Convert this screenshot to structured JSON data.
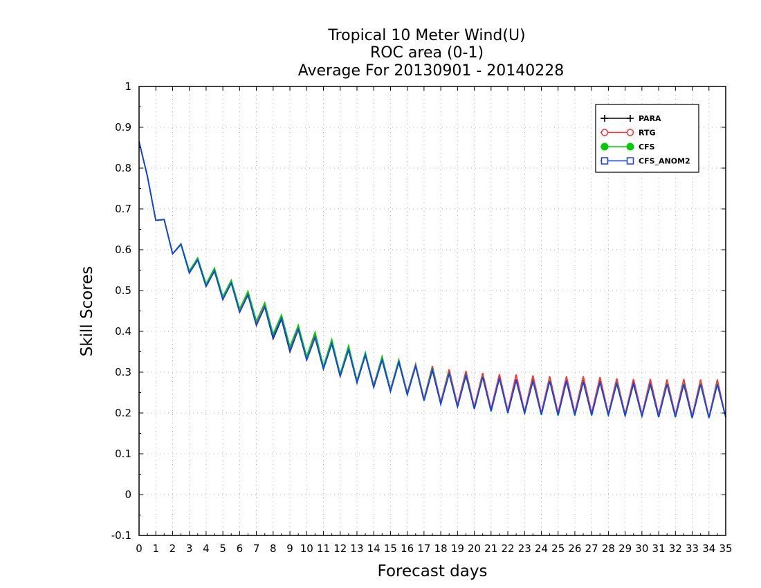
{
  "chart_data": {
    "type": "line",
    "title_lines": [
      "Tropical 10 Meter Wind(U)",
      "ROC area (0-1)",
      "Average For 20130901 - 20140228"
    ],
    "xlabel": "Forecast days",
    "ylabel": "Skill Scores",
    "xlim": [
      0,
      35
    ],
    "ylim": [
      -0.1,
      1
    ],
    "xticks": [
      0,
      1,
      2,
      3,
      4,
      5,
      6,
      7,
      8,
      9,
      10,
      11,
      12,
      13,
      14,
      15,
      16,
      17,
      18,
      19,
      20,
      21,
      22,
      23,
      24,
      25,
      26,
      27,
      28,
      29,
      30,
      31,
      32,
      33,
      34,
      35
    ],
    "yticks": [
      -0.1,
      0,
      0.1,
      0.2,
      0.3,
      0.4,
      0.5,
      0.6,
      0.7,
      0.8,
      0.9,
      1
    ],
    "ytick_labels": [
      "-0.1",
      "0",
      "0.1",
      "0.2",
      "0.3",
      "0.4",
      "0.5",
      "0.6",
      "0.7",
      "0.8",
      "0.9",
      "1"
    ],
    "grid": true,
    "legend_position": "top-right",
    "x": [
      0,
      0.5,
      1,
      1.5,
      2,
      2.5,
      3,
      3.5,
      4,
      4.5,
      5,
      5.5,
      6,
      6.5,
      7,
      7.5,
      8,
      8.5,
      9,
      9.5,
      10,
      10.5,
      11,
      11.5,
      12,
      12.5,
      13,
      13.5,
      14,
      14.5,
      15,
      15.5,
      16,
      16.5,
      17,
      17.5,
      18,
      18.5,
      19,
      19.5,
      20,
      20.5,
      21,
      21.5,
      22,
      22.5,
      23,
      23.5,
      24,
      24.5,
      25,
      25.5,
      26,
      26.5,
      27,
      27.5,
      28,
      28.5,
      29,
      29.5,
      30,
      30.5,
      31,
      31.5,
      32,
      32.5,
      33,
      33.5,
      34,
      34.5,
      35
    ],
    "series": [
      {
        "name": "PARA",
        "color": "#000000",
        "marker": "plus",
        "values": [
          0.865,
          0.78,
          0.672,
          0.674,
          0.59,
          0.613,
          0.543,
          0.575,
          0.51,
          0.548,
          0.478,
          0.52,
          0.447,
          0.49,
          0.415,
          0.46,
          0.382,
          0.43,
          0.35,
          0.405,
          0.33,
          0.385,
          0.308,
          0.37,
          0.29,
          0.355,
          0.274,
          0.342,
          0.263,
          0.33,
          0.253,
          0.325,
          0.245,
          0.315,
          0.23,
          0.305,
          0.222,
          0.298,
          0.215,
          0.292,
          0.21,
          0.29,
          0.205,
          0.288,
          0.2,
          0.282,
          0.2,
          0.282,
          0.196,
          0.28,
          0.195,
          0.28,
          0.195,
          0.28,
          0.195,
          0.278,
          0.195,
          0.275,
          0.193,
          0.272,
          0.192,
          0.272,
          0.19,
          0.272,
          0.19,
          0.272,
          0.188,
          0.272,
          0.188,
          0.272,
          0.19
        ]
      },
      {
        "name": "RTG",
        "color": "#ff3030",
        "marker": "circle-open",
        "values": [
          0.865,
          0.78,
          0.672,
          0.674,
          0.59,
          0.615,
          0.546,
          0.578,
          0.513,
          0.552,
          0.481,
          0.524,
          0.45,
          0.494,
          0.419,
          0.465,
          0.387,
          0.436,
          0.356,
          0.411,
          0.336,
          0.392,
          0.313,
          0.376,
          0.296,
          0.361,
          0.28,
          0.346,
          0.268,
          0.338,
          0.258,
          0.33,
          0.25,
          0.32,
          0.235,
          0.315,
          0.227,
          0.307,
          0.22,
          0.303,
          0.215,
          0.298,
          0.21,
          0.295,
          0.205,
          0.294,
          0.203,
          0.292,
          0.2,
          0.29,
          0.2,
          0.29,
          0.2,
          0.29,
          0.2,
          0.288,
          0.198,
          0.285,
          0.197,
          0.283,
          0.196,
          0.283,
          0.195,
          0.282,
          0.195,
          0.283,
          0.192,
          0.282,
          0.19,
          0.282,
          0.19
        ]
      },
      {
        "name": "CFS",
        "color": "#00cc00",
        "marker": "circle-filled",
        "values": [
          0.865,
          0.78,
          0.672,
          0.674,
          0.59,
          0.615,
          0.548,
          0.58,
          0.516,
          0.555,
          0.485,
          0.525,
          0.455,
          0.498,
          0.425,
          0.47,
          0.393,
          0.44,
          0.362,
          0.415,
          0.338,
          0.398,
          0.314,
          0.38,
          0.295,
          0.365,
          0.278,
          0.348,
          0.265,
          0.338,
          0.256,
          0.33,
          0.247,
          0.318,
          0.232,
          0.31,
          0.223,
          0.3,
          0.215,
          0.295,
          0.21,
          0.29,
          0.203,
          0.285,
          0.2,
          0.28,
          0.198,
          0.28,
          0.195,
          0.28,
          0.193,
          0.278,
          0.193,
          0.278,
          0.193,
          0.276,
          0.193,
          0.275,
          0.193,
          0.272,
          0.192,
          0.272,
          0.19,
          0.272,
          0.19,
          0.272,
          0.188,
          0.272,
          0.188,
          0.272,
          0.19
        ]
      },
      {
        "name": "CFS_ANOM2",
        "color": "#1040ff",
        "marker": "square-open",
        "values": [
          0.865,
          0.78,
          0.672,
          0.674,
          0.59,
          0.613,
          0.543,
          0.575,
          0.51,
          0.548,
          0.478,
          0.518,
          0.447,
          0.489,
          0.415,
          0.46,
          0.385,
          0.432,
          0.352,
          0.405,
          0.33,
          0.385,
          0.308,
          0.37,
          0.29,
          0.355,
          0.274,
          0.342,
          0.263,
          0.33,
          0.253,
          0.325,
          0.245,
          0.315,
          0.23,
          0.305,
          0.222,
          0.296,
          0.215,
          0.292,
          0.21,
          0.288,
          0.205,
          0.285,
          0.2,
          0.28,
          0.2,
          0.278,
          0.196,
          0.278,
          0.195,
          0.278,
          0.195,
          0.276,
          0.195,
          0.275,
          0.195,
          0.272,
          0.193,
          0.272,
          0.192,
          0.27,
          0.19,
          0.27,
          0.19,
          0.27,
          0.188,
          0.27,
          0.188,
          0.27,
          0.19
        ]
      }
    ]
  }
}
